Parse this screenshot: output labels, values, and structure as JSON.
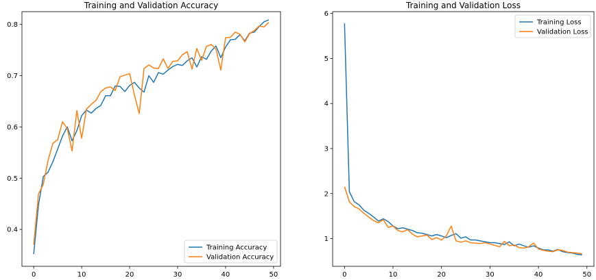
{
  "colors": {
    "training": "#1f77b4",
    "validation": "#ff7f0e"
  },
  "chart_data": [
    {
      "type": "line",
      "title": "Training and Validation Accuracy",
      "xlabel": "",
      "ylabel": "",
      "xlim": [
        -2.45,
        51.45
      ],
      "ylim": [
        0.328,
        0.825
      ],
      "xticks": [
        0,
        10,
        20,
        30,
        40,
        50
      ],
      "yticks": [
        0.4,
        0.5,
        0.6,
        0.7,
        0.8
      ],
      "ytick_labels": [
        "0.4",
        "0.5",
        "0.6",
        "0.7",
        "0.8"
      ],
      "grid": false,
      "legend_position": "lower-right",
      "x": [
        0,
        1,
        2,
        3,
        4,
        5,
        6,
        7,
        8,
        9,
        10,
        11,
        12,
        13,
        14,
        15,
        16,
        17,
        18,
        19,
        20,
        21,
        22,
        23,
        24,
        25,
        26,
        27,
        28,
        29,
        30,
        31,
        32,
        33,
        34,
        35,
        36,
        37,
        38,
        39,
        40,
        41,
        42,
        43,
        44,
        45,
        46,
        47,
        48,
        49
      ],
      "series": [
        {
          "name": "Training Accuracy",
          "color_key": "training",
          "values": [
            0.352,
            0.448,
            0.503,
            0.512,
            0.532,
            0.557,
            0.582,
            0.6,
            0.573,
            0.593,
            0.622,
            0.633,
            0.627,
            0.636,
            0.642,
            0.661,
            0.661,
            0.68,
            0.679,
            0.669,
            0.681,
            0.687,
            0.676,
            0.668,
            0.7,
            0.687,
            0.706,
            0.703,
            0.711,
            0.718,
            0.722,
            0.72,
            0.729,
            0.735,
            0.717,
            0.737,
            0.732,
            0.748,
            0.758,
            0.735,
            0.756,
            0.77,
            0.771,
            0.78,
            0.768,
            0.783,
            0.785,
            0.796,
            0.805,
            0.809
          ]
        },
        {
          "name": "Validation Accuracy",
          "color_key": "validation",
          "values": [
            0.37,
            0.469,
            0.488,
            0.535,
            0.568,
            0.575,
            0.61,
            0.597,
            0.553,
            0.632,
            0.578,
            0.635,
            0.644,
            0.652,
            0.669,
            0.676,
            0.678,
            0.671,
            0.698,
            0.701,
            0.704,
            0.662,
            0.626,
            0.714,
            0.721,
            0.715,
            0.714,
            0.733,
            0.714,
            0.728,
            0.729,
            0.741,
            0.747,
            0.713,
            0.753,
            0.73,
            0.757,
            0.761,
            0.752,
            0.711,
            0.774,
            0.775,
            0.785,
            0.781,
            0.766,
            0.782,
            0.788,
            0.797,
            0.795,
            0.804
          ]
        }
      ]
    },
    {
      "type": "line",
      "title": "Training and Validation Loss",
      "xlabel": "",
      "ylabel": "",
      "xlim": [
        -2.45,
        51.45
      ],
      "ylim": [
        0.385,
        6.04
      ],
      "xticks": [
        0,
        10,
        20,
        30,
        40,
        50
      ],
      "yticks": [
        1,
        2,
        3,
        4,
        5,
        6
      ],
      "ytick_labels": [
        "1",
        "2",
        "3",
        "4",
        "5",
        "6"
      ],
      "grid": false,
      "legend_position": "top-right",
      "x": [
        0,
        1,
        2,
        3,
        4,
        5,
        6,
        7,
        8,
        9,
        10,
        11,
        12,
        13,
        14,
        15,
        16,
        17,
        18,
        19,
        20,
        21,
        22,
        23,
        24,
        25,
        26,
        27,
        28,
        29,
        30,
        31,
        32,
        33,
        34,
        35,
        36,
        37,
        38,
        39,
        40,
        41,
        42,
        43,
        44,
        45,
        46,
        47,
        48,
        49
      ],
      "series": [
        {
          "name": "Training Loss",
          "color_key": "training",
          "values": [
            5.78,
            2.04,
            1.82,
            1.75,
            1.63,
            1.56,
            1.48,
            1.39,
            1.44,
            1.38,
            1.28,
            1.22,
            1.24,
            1.21,
            1.18,
            1.13,
            1.12,
            1.09,
            1.06,
            1.09,
            1.06,
            1.02,
            1.07,
            1.11,
            1.01,
            1.04,
            0.97,
            0.97,
            0.95,
            0.93,
            0.91,
            0.91,
            0.89,
            0.87,
            0.93,
            0.84,
            0.88,
            0.84,
            0.81,
            0.84,
            0.79,
            0.75,
            0.75,
            0.72,
            0.76,
            0.71,
            0.69,
            0.68,
            0.65,
            0.64
          ]
        },
        {
          "name": "Validation Loss",
          "color_key": "validation",
          "values": [
            2.15,
            1.82,
            1.71,
            1.66,
            1.56,
            1.48,
            1.4,
            1.35,
            1.42,
            1.25,
            1.28,
            1.18,
            1.15,
            1.2,
            1.1,
            1.04,
            1.06,
            1.08,
            0.98,
            1.02,
            0.97,
            1.06,
            1.28,
            0.95,
            0.92,
            0.95,
            0.91,
            0.9,
            0.89,
            0.91,
            0.88,
            0.85,
            0.82,
            0.94,
            0.84,
            0.86,
            0.8,
            0.79,
            0.82,
            0.9,
            0.77,
            0.74,
            0.72,
            0.71,
            0.75,
            0.74,
            0.7,
            0.69,
            0.68,
            0.66
          ]
        }
      ]
    }
  ]
}
